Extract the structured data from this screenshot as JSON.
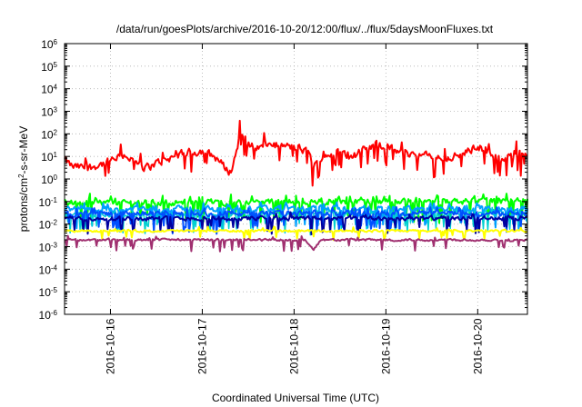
{
  "chart_data": {
    "type": "line",
    "title": "/data/run/goesPlots/archive/2016-10-20/12:00/flux/../flux/5daysMoonFluxes.txt",
    "xlabel": "Coordinated Universal Time (UTC)",
    "ylabel": {
      "base": "protons/cm",
      "sup": "2",
      "rest": "-s-sr-MeV"
    },
    "y_scale": "log",
    "ylim": [
      1e-06,
      1000000.0
    ],
    "y_ticks": [
      {
        "exp": "-6",
        "value": 1e-06
      },
      {
        "exp": "-5",
        "value": 1e-05
      },
      {
        "exp": "-4",
        "value": 0.0001
      },
      {
        "exp": "-3",
        "value": 0.001
      },
      {
        "exp": "-2",
        "value": 0.01
      },
      {
        "exp": "-1",
        "value": 0.1
      },
      {
        "exp": "0",
        "value": 1
      },
      {
        "exp": "1",
        "value": 10
      },
      {
        "exp": "2",
        "value": 100
      },
      {
        "exp": "3",
        "value": 1000.0
      },
      {
        "exp": "4",
        "value": 10000.0
      },
      {
        "exp": "5",
        "value": 100000.0
      },
      {
        "exp": "6",
        "value": 1000000.0
      }
    ],
    "y_tick_base": "10",
    "xlim": [
      "2016-10-15T12:00",
      "2016-10-20T13:00"
    ],
    "x_ticks": [
      "2016-10-16",
      "2016-10-17",
      "2016-10-18",
      "2016-10-19",
      "2016-10-20"
    ],
    "grid": true,
    "series": [
      {
        "color": "#ff0000",
        "anchors": [
          [
            "2016-10-15T12:00",
            7
          ],
          [
            "2016-10-15T14:00",
            3.5
          ],
          [
            "2016-10-15T18:00",
            3
          ],
          [
            "2016-10-16T00:00",
            6
          ],
          [
            "2016-10-16T04:00",
            12
          ],
          [
            "2016-10-16T06:00",
            6
          ],
          [
            "2016-10-16T09:00",
            3
          ],
          [
            "2016-10-16T12:00",
            5
          ],
          [
            "2016-10-16T18:00",
            12
          ],
          [
            "2016-10-17T00:00",
            18
          ],
          [
            "2016-10-17T04:00",
            8
          ],
          [
            "2016-10-17T06:00",
            3
          ],
          [
            "2016-10-17T07:30",
            2
          ],
          [
            "2016-10-17T09:00",
            20
          ],
          [
            "2016-10-17T10:00",
            150
          ],
          [
            "2016-10-17T11:30",
            40
          ],
          [
            "2016-10-17T14:00",
            25
          ],
          [
            "2016-10-17T18:00",
            35
          ],
          [
            "2016-10-18T00:00",
            25
          ],
          [
            "2016-10-18T04:00",
            15
          ],
          [
            "2016-10-18T05:00",
            3
          ],
          [
            "2016-10-18T07:00",
            8
          ],
          [
            "2016-10-18T10:00",
            15
          ],
          [
            "2016-10-18T16:00",
            12
          ],
          [
            "2016-10-18T22:00",
            35
          ],
          [
            "2016-10-19T04:00",
            15
          ],
          [
            "2016-10-19T09:00",
            12
          ],
          [
            "2016-10-19T14:00",
            8
          ],
          [
            "2016-10-19T20:00",
            12
          ],
          [
            "2016-10-20T00:00",
            30
          ],
          [
            "2016-10-20T04:00",
            12
          ],
          [
            "2016-10-20T06:00",
            6
          ],
          [
            "2016-10-20T10:00",
            12
          ],
          [
            "2016-10-20T13:00",
            14
          ]
        ],
        "noise": 0.28,
        "dips": 0.08,
        "dip_depth": 0.8,
        "spikes": 0.05,
        "spike_height": 0.5,
        "width": 2
      },
      {
        "color": "#00ff00",
        "anchors": [
          [
            "2016-10-15T12:00",
            0.09
          ],
          [
            "2016-10-20T13:00",
            0.1
          ]
        ],
        "noise": 0.22,
        "dips": 0.12,
        "dip_depth": 0.9,
        "spikes": 0.1,
        "spike_height": 0.25,
        "width": 2
      },
      {
        "color": "#00a0ff",
        "anchors": [
          [
            "2016-10-15T12:00",
            0.045
          ],
          [
            "2016-10-20T13:00",
            0.05
          ]
        ],
        "noise": 0.2,
        "dips": 0.12,
        "dip_depth": 0.9,
        "spikes": 0.06,
        "spike_height": 0.25,
        "width": 2
      },
      {
        "color": "#00d0d0",
        "anchors": [
          [
            "2016-10-15T12:00",
            0.025
          ],
          [
            "2016-10-20T13:00",
            0.03
          ]
        ],
        "noise": 0.2,
        "dips": 0.12,
        "dip_depth": 0.8,
        "spikes": 0.04,
        "spike_height": 0.2,
        "width": 1.5
      },
      {
        "color": "#0050ff",
        "anchors": [
          [
            "2016-10-15T12:00",
            0.03
          ],
          [
            "2016-10-20T13:00",
            0.03
          ]
        ],
        "noise": 0.18,
        "dips": 0.1,
        "dip_depth": 0.8,
        "spikes": 0.04,
        "spike_height": 0.2,
        "width": 2
      },
      {
        "color": "#0000a0",
        "anchors": [
          [
            "2016-10-15T12:00",
            0.018
          ],
          [
            "2016-10-20T13:00",
            0.018
          ]
        ],
        "noise": 0.15,
        "dips": 0.1,
        "dip_depth": 0.7,
        "spikes": 0.03,
        "spike_height": 0.2,
        "width": 2
      },
      {
        "color": "#ffff00",
        "anchors": [
          [
            "2016-10-15T12:00",
            0.005
          ],
          [
            "2016-10-20T13:00",
            0.005
          ]
        ],
        "noise": 0.08,
        "dips": 0.04,
        "dip_depth": 0.4,
        "spikes": 0.02,
        "spike_height": 0.2,
        "width": 2
      },
      {
        "color": "#a03070",
        "anchors": [
          [
            "2016-10-15T12:00",
            0.002
          ],
          [
            "2016-10-18T03:00",
            0.002
          ],
          [
            "2016-10-18T05:00",
            0.0007
          ],
          [
            "2016-10-18T07:00",
            0.002
          ],
          [
            "2016-10-20T13:00",
            0.002
          ]
        ],
        "noise": 0.08,
        "dips": 0.05,
        "dip_depth": 0.5,
        "spikes": 0.02,
        "spike_height": 0.15,
        "width": 2
      }
    ]
  }
}
